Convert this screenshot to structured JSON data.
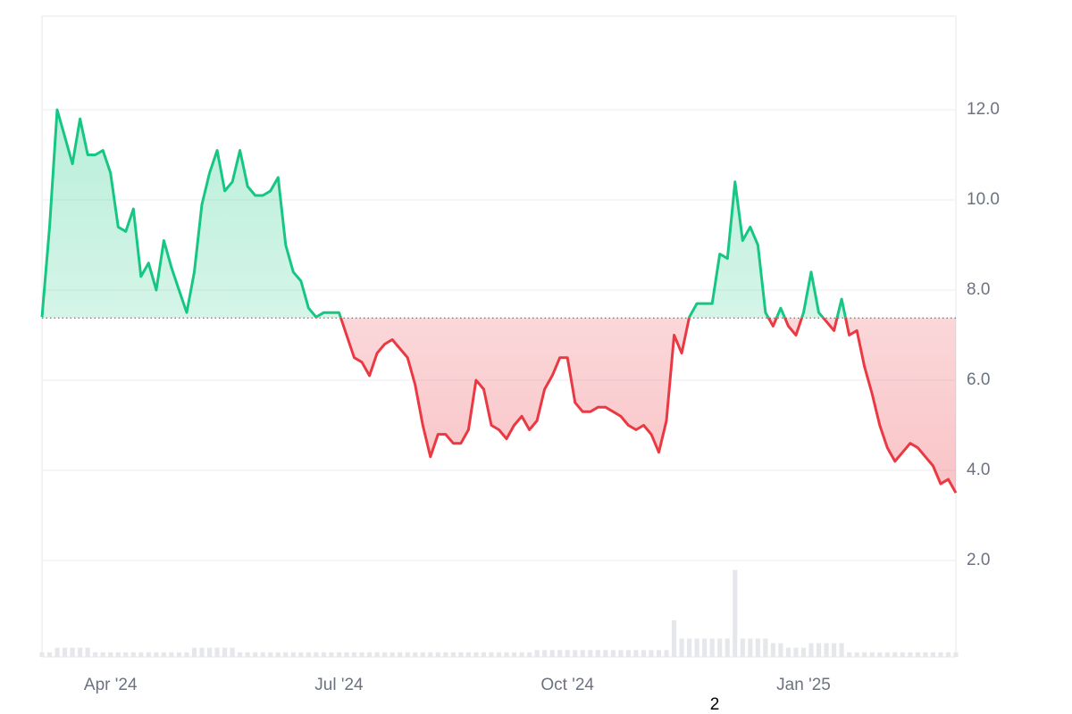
{
  "chart_data": {
    "type": "line",
    "categories": [
      null,
      null,
      null,
      null,
      null,
      null,
      null,
      null,
      null,
      "Apr '24",
      null,
      null,
      null,
      null,
      null,
      null,
      null,
      null,
      null,
      null,
      null,
      null,
      null,
      null,
      null,
      null,
      null,
      null,
      null,
      null,
      null,
      null,
      null,
      null,
      null,
      null,
      null,
      null,
      null,
      "Jul '24",
      null,
      null,
      null,
      null,
      null,
      null,
      null,
      null,
      null,
      null,
      null,
      null,
      null,
      null,
      null,
      null,
      null,
      null,
      null,
      null,
      null,
      null,
      null,
      null,
      null,
      null,
      null,
      null,
      null,
      "Oct '24",
      null,
      null,
      null,
      null,
      null,
      null,
      null,
      null,
      null,
      null,
      null,
      null,
      null,
      null,
      null,
      null,
      null,
      null,
      null,
      null,
      null,
      null,
      null,
      null,
      null,
      null,
      null,
      null,
      null,
      null,
      "Jan '25",
      null,
      null,
      null,
      null,
      null,
      null,
      null,
      null,
      null,
      null,
      null,
      null,
      null,
      null,
      null,
      null,
      null,
      null,
      null,
      null
    ],
    "series": [
      {
        "color": "#16c784",
        "below_color": "#ea3943",
        "values": [
          7.4,
          9.4,
          12.0,
          11.4,
          10.8,
          11.8,
          11.0,
          11.0,
          11.1,
          10.6,
          9.4,
          9.3,
          9.8,
          8.3,
          8.6,
          8.0,
          9.1,
          8.5,
          8.0,
          7.5,
          8.4,
          9.9,
          10.6,
          11.1,
          10.2,
          10.4,
          11.1,
          10.3,
          10.1,
          10.1,
          10.2,
          10.5,
          9.0,
          8.4,
          8.2,
          7.6,
          7.4,
          7.5,
          7.5,
          7.5,
          7.0,
          6.5,
          6.4,
          6.1,
          6.6,
          6.8,
          6.9,
          6.7,
          6.5,
          5.9,
          5.0,
          4.3,
          4.8,
          4.8,
          4.6,
          4.6,
          4.9,
          6.0,
          5.8,
          5.0,
          4.9,
          4.7,
          5.0,
          5.2,
          4.9,
          5.1,
          5.8,
          6.1,
          6.5,
          6.5,
          5.5,
          5.3,
          5.3,
          5.4,
          5.4,
          5.3,
          5.2,
          5.0,
          4.9,
          5.0,
          4.8,
          4.4,
          5.1,
          7.0,
          6.6,
          7.4,
          7.7,
          7.7,
          7.7,
          8.8,
          8.7,
          10.4,
          9.1,
          9.4,
          9.0,
          7.5,
          7.2,
          7.6,
          7.2,
          7.0,
          7.5,
          8.4,
          7.5,
          7.3,
          7.1,
          7.8,
          7.0,
          7.1,
          6.3,
          5.7,
          5.0,
          4.5,
          4.2,
          4.4,
          4.6,
          4.5,
          4.3,
          4.1,
          3.7,
          3.8,
          3.5
        ]
      },
      {
        "color": "#e5e7eb",
        "axis": "y2",
        "values": [
          1,
          1,
          2,
          2,
          2,
          2,
          2,
          1,
          1,
          1,
          1,
          1,
          1,
          1,
          1,
          1,
          1,
          1,
          1,
          1,
          2,
          2,
          2,
          2,
          2,
          2,
          1,
          1,
          1,
          1,
          1,
          1,
          1,
          1,
          1,
          1,
          1,
          1,
          1,
          1,
          1,
          1,
          1,
          1,
          1,
          1,
          1,
          1,
          1,
          1,
          1,
          1,
          1,
          1,
          1,
          1,
          1,
          1,
          1,
          1,
          1,
          1,
          1,
          1,
          1,
          1.5,
          1.5,
          1.5,
          1.5,
          1.5,
          1.5,
          1.5,
          1.5,
          1.5,
          1.5,
          1.5,
          1.5,
          1.5,
          1.5,
          1.5,
          1.5,
          1.5,
          1.5,
          8,
          4,
          4,
          4,
          4,
          4,
          4,
          4,
          19,
          4,
          4,
          4,
          4,
          3,
          3,
          2,
          2,
          2,
          3,
          3,
          3,
          3,
          3,
          1,
          1,
          1,
          1,
          1,
          1,
          1,
          1,
          1,
          1,
          1,
          1,
          1,
          1,
          1
        ]
      }
    ],
    "reference_line": 7.38,
    "ylim": [
      -0.14,
      14.08
    ],
    "yticks": [
      {
        "value": 2,
        "label": "2.0"
      },
      {
        "value": 4,
        "label": "4.0"
      },
      {
        "value": 6,
        "label": "6.0"
      },
      {
        "value": 8,
        "label": "8.0"
      },
      {
        "value": 10,
        "label": "10.0"
      },
      {
        "value": 12,
        "label": "12.0"
      }
    ],
    "y2lim": [
      0,
      140
    ],
    "grid": true,
    "annotation": "2"
  }
}
